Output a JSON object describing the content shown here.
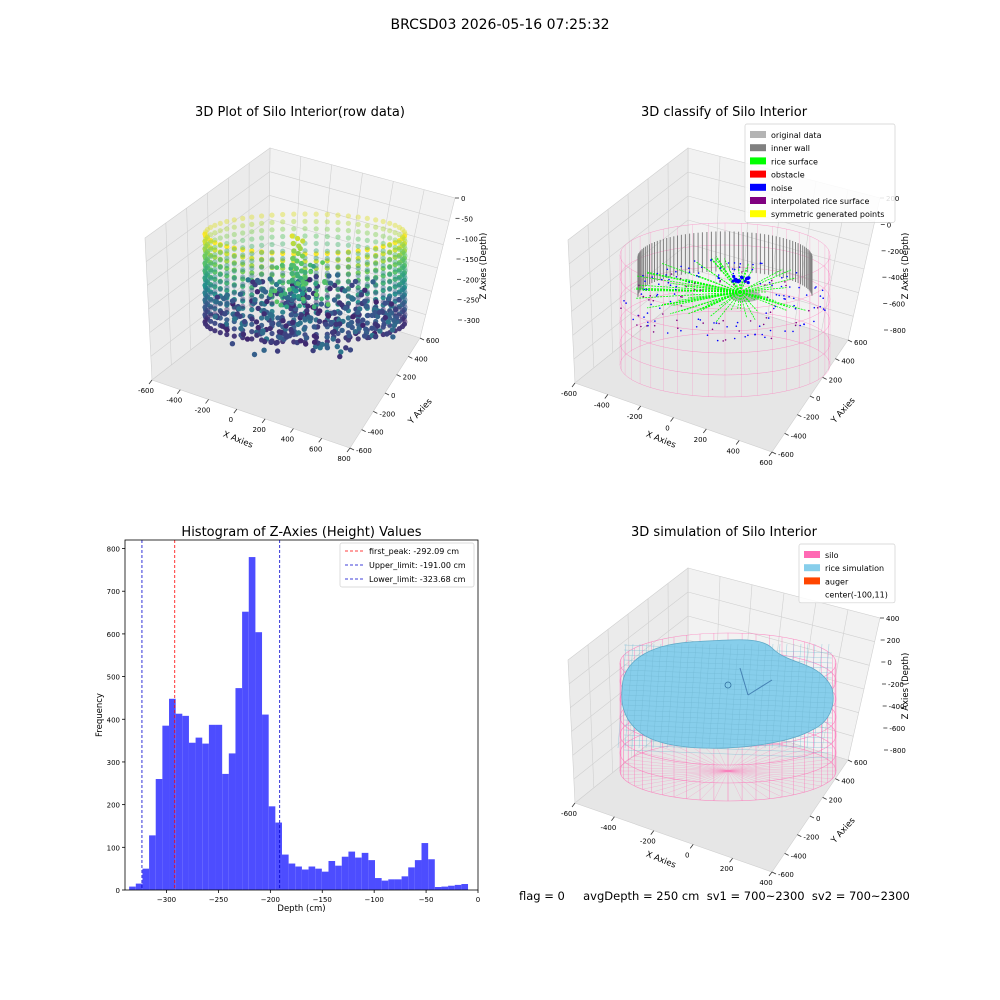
{
  "figure": {
    "title": "BRCSD03 2026-05-16 07:25:32",
    "status_line": "flag = 0     avgDepth = 250 cm  sv1 = 700~2300  sv2 = 700~2300"
  },
  "colors": {
    "hist_bar": "#4d4dff",
    "peak_line": "#ff0000",
    "limit_line": "#0000cc",
    "pane": "#f2f2f2",
    "grid": "#d0d0d0"
  },
  "chart_data": [
    {
      "id": "raw",
      "type": "scatter",
      "title": "3D Plot of Silo Interior(row data)",
      "xlabel": "X Axies",
      "ylabel": "Y Axies",
      "zlabel": "Z Axies (Depth)",
      "xticks": [
        "-600",
        "-400",
        "-200",
        "0",
        "200",
        "400",
        "600",
        "800"
      ],
      "yticks": [
        "600",
        "400",
        "200",
        "0",
        "-200",
        "-400",
        "-600"
      ],
      "zticks": [
        "0",
        "-50",
        "-100",
        "-150",
        "-200",
        "-250",
        "-300"
      ],
      "colormap": "viridis",
      "legend": []
    },
    {
      "id": "classify",
      "type": "scatter",
      "title": "3D classify of Silo Interior",
      "xlabel": "X Axies",
      "ylabel": "Y Axies",
      "zlabel": "Z Axies (Depth)",
      "xticks": [
        "-600",
        "-400",
        "-200",
        "0",
        "200",
        "400",
        "600"
      ],
      "yticks": [
        "600",
        "400",
        "200",
        "0",
        "-200",
        "-400",
        "-600"
      ],
      "zticks": [
        "200",
        "0",
        "-200",
        "-400",
        "-600",
        "-800"
      ],
      "legend_placement": "upper right",
      "legend": [
        {
          "label": "original data",
          "color": "#b4b4b4"
        },
        {
          "label": "inner wall",
          "color": "#808080"
        },
        {
          "label": "rice surface",
          "color": "#00ff00"
        },
        {
          "label": "obstacle",
          "color": "#ff0000"
        },
        {
          "label": "noise",
          "color": "#0000ff"
        },
        {
          "label": "interpolated rice surface",
          "color": "#800080"
        },
        {
          "label": "symmetric generated points",
          "color": "#ffff00"
        }
      ]
    },
    {
      "id": "hist",
      "type": "bar",
      "title": "Histogram of Z-Axies (Height) Values",
      "xlabel": "Depth (cm)",
      "ylabel": "Frequency",
      "xlim": [
        -340,
        0
      ],
      "ylim": [
        0,
        820
      ],
      "xticks": [
        -300,
        -250,
        -200,
        -150,
        -100,
        -50,
        0
      ],
      "yticks": [
        0,
        100,
        200,
        300,
        400,
        500,
        600,
        700,
        800
      ],
      "bin_width": 6.4,
      "bins": [
        {
          "x": -336,
          "y": 8
        },
        {
          "x": -329.6,
          "y": 15
        },
        {
          "x": -323.2,
          "y": 50
        },
        {
          "x": -316.8,
          "y": 128
        },
        {
          "x": -310.4,
          "y": 260
        },
        {
          "x": -304,
          "y": 385
        },
        {
          "x": -297.6,
          "y": 448
        },
        {
          "x": -291.2,
          "y": 413
        },
        {
          "x": -284.8,
          "y": 408
        },
        {
          "x": -278.4,
          "y": 345
        },
        {
          "x": -272,
          "y": 357
        },
        {
          "x": -265.6,
          "y": 343
        },
        {
          "x": -259.2,
          "y": 387
        },
        {
          "x": -252.8,
          "y": 387
        },
        {
          "x": -246.4,
          "y": 272
        },
        {
          "x": -240,
          "y": 320
        },
        {
          "x": -233.6,
          "y": 473
        },
        {
          "x": -227.2,
          "y": 652
        },
        {
          "x": -220.8,
          "y": 780
        },
        {
          "x": -214.4,
          "y": 604
        },
        {
          "x": -208,
          "y": 411
        },
        {
          "x": -201.6,
          "y": 196
        },
        {
          "x": -195.2,
          "y": 158
        },
        {
          "x": -188.8,
          "y": 83
        },
        {
          "x": -182.4,
          "y": 62
        },
        {
          "x": -176,
          "y": 55
        },
        {
          "x": -169.6,
          "y": 48
        },
        {
          "x": -163.2,
          "y": 55
        },
        {
          "x": -156.8,
          "y": 50
        },
        {
          "x": -150.4,
          "y": 43
        },
        {
          "x": -144,
          "y": 68
        },
        {
          "x": -137.6,
          "y": 57
        },
        {
          "x": -131.2,
          "y": 78
        },
        {
          "x": -124.8,
          "y": 90
        },
        {
          "x": -118.4,
          "y": 76
        },
        {
          "x": -112,
          "y": 87
        },
        {
          "x": -105.6,
          "y": 70
        },
        {
          "x": -99.2,
          "y": 28
        },
        {
          "x": -92.8,
          "y": 22
        },
        {
          "x": -86.4,
          "y": 25
        },
        {
          "x": -80,
          "y": 25
        },
        {
          "x": -73.6,
          "y": 32
        },
        {
          "x": -67.2,
          "y": 53
        },
        {
          "x": -60.8,
          "y": 70
        },
        {
          "x": -54.4,
          "y": 110
        },
        {
          "x": -48,
          "y": 72
        },
        {
          "x": -41.6,
          "y": 7
        },
        {
          "x": -35.2,
          "y": 8
        },
        {
          "x": -28.8,
          "y": 10
        },
        {
          "x": -22.4,
          "y": 12
        },
        {
          "x": -16,
          "y": 14
        }
      ],
      "vlines": [
        {
          "label": "first_peak: -292.09 cm",
          "x": -292.09,
          "color": "#ff0000"
        },
        {
          "label": "Upper_limit: -191.00 cm",
          "x": -191.0,
          "color": "#0000cc"
        },
        {
          "label": "Lower_limit: -323.68 cm",
          "x": -323.68,
          "color": "#0000cc"
        }
      ],
      "legend_placement": "upper right"
    },
    {
      "id": "sim",
      "type": "scatter",
      "title": "3D simulation of Silo Interior",
      "xlabel": "X Axies",
      "ylabel": "Y Axies",
      "zlabel": "Z Axies (Depth)",
      "xticks": [
        "-600",
        "-400",
        "-200",
        "0",
        "200",
        "400"
      ],
      "yticks": [
        "600",
        "400",
        "200",
        "0",
        "-200",
        "-400",
        "-600"
      ],
      "zticks": [
        "400",
        "200",
        "0",
        "-200",
        "-400",
        "-600",
        "-800"
      ],
      "legend_placement": "upper right",
      "legend": [
        {
          "label": "silo",
          "color": "#ff69b4"
        },
        {
          "label": "rice simulation",
          "color": "#87ceeb"
        },
        {
          "label": "auger",
          "color": "#ff4500"
        },
        {
          "label": "center(-100,11)",
          "color": ""
        }
      ]
    }
  ]
}
